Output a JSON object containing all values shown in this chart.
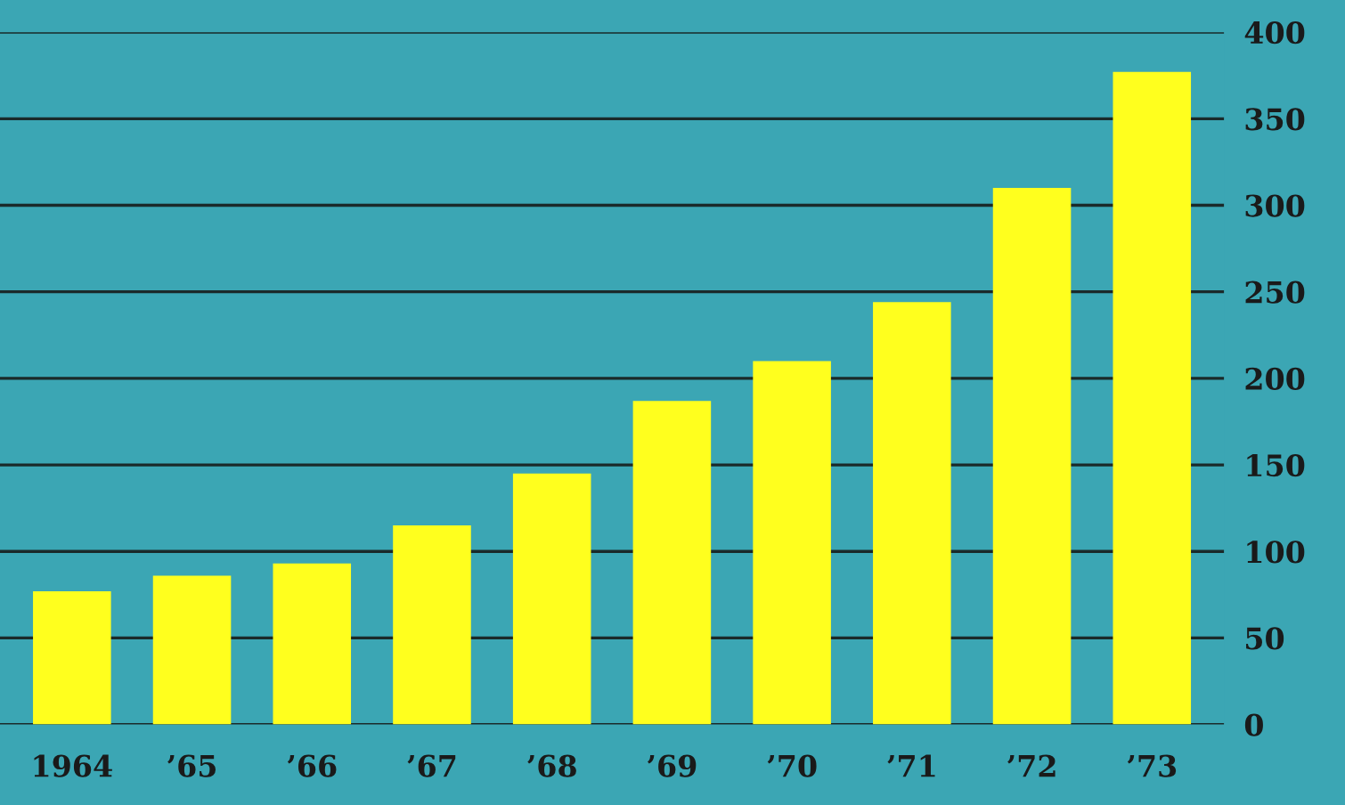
{
  "chart_data": {
    "type": "bar",
    "categories": [
      "1964",
      "’65",
      "’66",
      "’67",
      "’68",
      "’69",
      "’70",
      "’71",
      "’72",
      "’73"
    ],
    "values": [
      77,
      86,
      93,
      115,
      145,
      187,
      210,
      244,
      310,
      377
    ],
    "color": "#ffff1e",
    "ylim": [
      0,
      400
    ],
    "yticks": [
      0,
      50,
      100,
      150,
      200,
      250,
      300,
      350,
      400
    ],
    "grid": "y"
  }
}
